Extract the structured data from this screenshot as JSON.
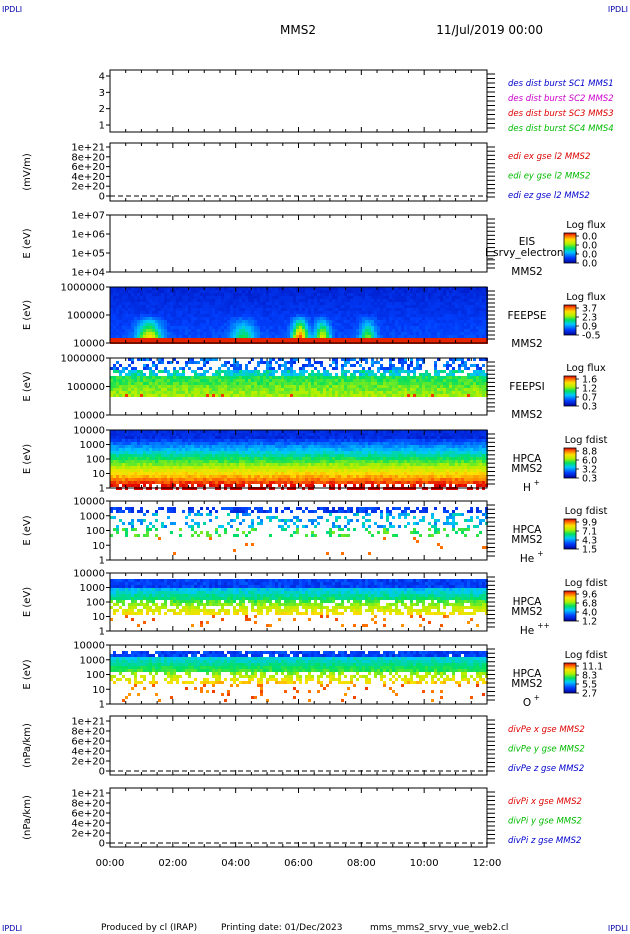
{
  "header": {
    "corner_label": "IPDLI",
    "spacecraft": "MMS2",
    "date_time": "11/Jul/2019 00:00"
  },
  "footer": {
    "produced_by": "Produced by cl (IRAP)",
    "printing_date": "Printing date: 01/Dec/2023",
    "script_name": "mms_mms2_srvy_vue_web2.cl"
  },
  "colors": {
    "black": "#000000",
    "blue_label": "#0000cc",
    "magenta_label": "#cc00cc",
    "red_label": "#dd0000",
    "green_label": "#00bb00",
    "spectrogram_background": "#ffffff"
  },
  "chart_data": [
    {
      "type": "line",
      "id": "des-dist-burst",
      "ylabel": "",
      "ylim": [
        0.6,
        4.4
      ],
      "yticks": [
        "4",
        "3",
        "2",
        "1"
      ],
      "legend_placement": "right",
      "series": [
        {
          "name": "des dist burst SC1 MMS1",
          "color": "#0000cc",
          "values": []
        },
        {
          "name": "des dist burst SC2 MMS2",
          "color": "#cc00cc",
          "values": []
        },
        {
          "name": "des dist burst SC3 MMS3",
          "color": "#dd0000",
          "values": []
        },
        {
          "name": "des dist burst SC4 MMS4",
          "color": "#00bb00",
          "values": []
        }
      ]
    },
    {
      "type": "line",
      "id": "edi-e-gse",
      "ylabel": "(mV/m)",
      "ylim": [
        0,
        1e+21
      ],
      "yticks": [
        "1e+21",
        "8e+20",
        "6e+20",
        "4e+20",
        "2e+20",
        "0"
      ],
      "zero_line": "dashed",
      "legend_placement": "right",
      "series": [
        {
          "name": "edi ex gse l2 MMS2",
          "color": "#dd0000",
          "values": []
        },
        {
          "name": "edi ey gse l2 MMS2",
          "color": "#00bb00",
          "values": []
        },
        {
          "name": "edi ez gse l2 MMS2",
          "color": "#0000cc",
          "values": []
        }
      ]
    },
    {
      "type": "heatmap",
      "id": "eis",
      "ylabel": "E (eV)",
      "yscale": "log",
      "ylim": [
        10000.0,
        10000000.0
      ],
      "yticks": [
        "1e+07",
        "1e+06",
        "1e+05",
        "1e+04"
      ],
      "instrument_label": [
        "EIS",
        "MMS2"
      ],
      "overlay_text": "l_srvy_electron to",
      "colorbar": {
        "title": "Log flux",
        "ticks": [
          "0.0",
          "0.0",
          "0.0",
          "0.0"
        ]
      },
      "intensity": "empty"
    },
    {
      "type": "heatmap",
      "id": "feepse",
      "ylabel": "E (eV)",
      "yscale": "log",
      "ylim": [
        10000,
        1000000
      ],
      "yticks": [
        "1000000",
        "100000",
        "10000"
      ],
      "instrument_label": [
        "FEEPSE",
        "MMS2"
      ],
      "colorbar": {
        "title": "Log flux",
        "ticks": [
          "3.7",
          "2.3",
          "0.9",
          "-0.5"
        ]
      },
      "intensity": "feepse"
    },
    {
      "type": "heatmap",
      "id": "feepsi",
      "ylabel": "E (eV)",
      "yscale": "log",
      "ylim": [
        10000,
        1000000
      ],
      "yticks": [
        "1000000",
        "100000",
        "10000"
      ],
      "instrument_label": [
        "FEEPSI",
        "MMS2"
      ],
      "colorbar": {
        "title": "Log flux",
        "ticks": [
          "1.6",
          "1.2",
          "0.7",
          "0.3"
        ]
      },
      "intensity": "feepsi"
    },
    {
      "type": "heatmap",
      "id": "hpca-h",
      "ylabel": "E (eV)",
      "yscale": "log",
      "ylim": [
        1,
        10000
      ],
      "yticks": [
        "10000",
        "1000",
        "100",
        "10",
        "1"
      ],
      "instrument_label": [
        "HPCA",
        "MMS2"
      ],
      "species": {
        "base": "H",
        "charge": "+"
      },
      "colorbar": {
        "title": "Log fdist",
        "ticks": [
          "8.8",
          "6.0",
          "3.2",
          "0.3"
        ]
      },
      "intensity": "hpca_h"
    },
    {
      "type": "heatmap",
      "id": "hpca-he",
      "ylabel": "E (eV)",
      "yscale": "log",
      "ylim": [
        1,
        10000
      ],
      "yticks": [
        "10000",
        "1000",
        "100",
        "10",
        "1"
      ],
      "instrument_label": [
        "HPCA",
        "MMS2"
      ],
      "species": {
        "base": "He",
        "charge": "+"
      },
      "colorbar": {
        "title": "Log fdist",
        "ticks": [
          "9.9",
          "7.1",
          "4.3",
          "1.5"
        ]
      },
      "intensity": "hpca_he"
    },
    {
      "type": "heatmap",
      "id": "hpca-hepp",
      "ylabel": "E (eV)",
      "yscale": "log",
      "ylim": [
        1,
        10000
      ],
      "yticks": [
        "10000",
        "1000",
        "100",
        "10",
        "1"
      ],
      "instrument_label": [
        "HPCA",
        "MMS2"
      ],
      "species": {
        "base": "He",
        "charge": "++"
      },
      "colorbar": {
        "title": "Log fdist",
        "ticks": [
          "9.6",
          "6.8",
          "4.0",
          "1.2"
        ]
      },
      "intensity": "hpca_hepp"
    },
    {
      "type": "heatmap",
      "id": "hpca-o",
      "ylabel": "E (eV)",
      "yscale": "log",
      "ylim": [
        1,
        10000
      ],
      "yticks": [
        "10000",
        "1000",
        "100",
        "10",
        "1"
      ],
      "instrument_label": [
        "HPCA",
        "MMS2"
      ],
      "species": {
        "base": "O",
        "charge": "+"
      },
      "colorbar": {
        "title": "Log fdist",
        "ticks": [
          "11.1",
          "8.3",
          "5.5",
          "2.7"
        ]
      },
      "intensity": "hpca_o"
    },
    {
      "type": "line",
      "id": "divpe",
      "ylabel": "(nPa/km)",
      "ylim": [
        0,
        1e+21
      ],
      "yticks": [
        "1e+21",
        "8e+20",
        "6e+20",
        "4e+20",
        "2e+20",
        "0"
      ],
      "zero_line": "dashed",
      "legend_placement": "right",
      "series": [
        {
          "name": "divPe x gse MMS2",
          "color": "#dd0000",
          "values": []
        },
        {
          "name": "divPe y gse MMS2",
          "color": "#00bb00",
          "values": []
        },
        {
          "name": "divPe z gse MMS2",
          "color": "#0000cc",
          "values": []
        }
      ]
    },
    {
      "type": "line",
      "id": "divpi",
      "ylabel": "(nPa/km)",
      "ylim": [
        0,
        1e+21
      ],
      "yticks": [
        "1e+21",
        "8e+20",
        "6e+20",
        "4e+20",
        "2e+20",
        "0"
      ],
      "zero_line": "dashed",
      "legend_placement": "right",
      "series": [
        {
          "name": "divPi x gse MMS2",
          "color": "#dd0000",
          "values": []
        },
        {
          "name": "divPi y gse MMS2",
          "color": "#00bb00",
          "values": []
        },
        {
          "name": "divPi z gse MMS2",
          "color": "#0000cc",
          "values": []
        }
      ]
    }
  ],
  "time_axis": {
    "ticks": [
      "00:00",
      "02:00",
      "04:00",
      "06:00",
      "08:00",
      "10:00",
      "12:00"
    ]
  }
}
